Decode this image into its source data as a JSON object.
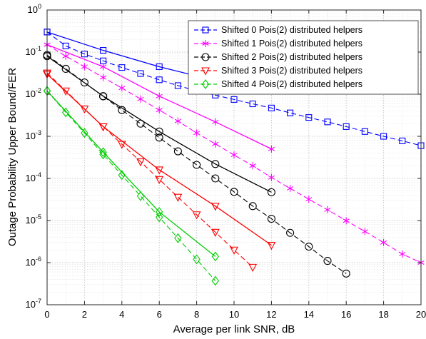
{
  "chart_data": {
    "type": "line",
    "title": "",
    "xlabel": "Average per link SNR, dB",
    "ylabel": "Outage Probability Upper Bound/FER",
    "xlim": [
      0,
      20
    ],
    "ylim_log10": [
      -7,
      0
    ],
    "y_scale": "log",
    "grid": "major and minor, dotted",
    "legend_position": "top-right",
    "x_ticks": [
      "0",
      "2",
      "4",
      "6",
      "8",
      "10",
      "12",
      "14",
      "16",
      "18",
      "20"
    ],
    "y_tick_exponents": [
      "0",
      "-1",
      "-2",
      "-3",
      "-4",
      "-5",
      "-6",
      "-7"
    ],
    "series": [
      {
        "name": "Shifted 0 Pois(2) distributed helpers",
        "color": "#0000ff",
        "marker": "square",
        "simulation": {
          "x": [
            0,
            1,
            2,
            3,
            4,
            5,
            6,
            7,
            8,
            9,
            10,
            11,
            12,
            13,
            14,
            15,
            16,
            17,
            18,
            19,
            20
          ],
          "y": [
            0.3,
            0.14,
            0.09,
            0.062,
            0.043,
            0.031,
            0.022,
            0.016,
            0.012,
            0.0095,
            0.0075,
            0.0059,
            0.0047,
            0.0036,
            0.0028,
            0.0022,
            0.0017,
            0.0013,
            0.001,
            0.00078,
            0.0006
          ]
        },
        "bound": {
          "x": [
            0,
            3,
            6,
            9,
            12
          ],
          "y": [
            0.3,
            0.11,
            0.045,
            0.021,
            0.012
          ]
        }
      },
      {
        "name": "Shifted 1 Pois(2)  distributed helpers",
        "color": "#ff00ff",
        "marker": "asterisk",
        "simulation": {
          "x": [
            0,
            1,
            2,
            3,
            4,
            5,
            6,
            7,
            8,
            9,
            10,
            11,
            12,
            13,
            14,
            15,
            16,
            17,
            18,
            19,
            20
          ],
          "y": [
            0.15,
            0.08,
            0.045,
            0.025,
            0.014,
            0.0077,
            0.0042,
            0.0023,
            0.0012,
            0.00066,
            0.00036,
            0.0002,
            0.000105,
            5.8e-05,
            3.2e-05,
            1.8e-05,
            9.9e-06,
            5.5e-06,
            3e-06,
            1.6e-06,
            1e-06
          ]
        },
        "bound": {
          "x": [
            0,
            3,
            6,
            9,
            12
          ],
          "y": [
            0.15,
            0.045,
            0.009,
            0.0022,
            0.0005
          ]
        }
      },
      {
        "name": "Shifted 2 Pois(2)  distributed helpers",
        "color": "#000000",
        "marker": "circle",
        "simulation": {
          "x": [
            0,
            1,
            2,
            3,
            4,
            5,
            6,
            7,
            8,
            9,
            10,
            11,
            12,
            13,
            14,
            15,
            16
          ],
          "y": [
            0.085,
            0.04,
            0.019,
            0.0089,
            0.0042,
            0.002,
            0.00093,
            0.00044,
            0.00021,
            0.0001,
            4.8e-05,
            2.2e-05,
            1.1e-05,
            5.1e-06,
            2.4e-06,
            1.1e-06,
            5.5e-07
          ]
        },
        "bound": {
          "x": [
            0,
            3,
            6,
            9,
            12
          ],
          "y": [
            0.08,
            0.009,
            0.0013,
            0.00022,
            4.7e-05
          ]
        }
      },
      {
        "name": "Shifted 3 Pois(2)  distributed helpers",
        "color": "#ff0000",
        "marker": "triangle-down",
        "simulation": {
          "x": [
            0,
            1,
            2,
            3,
            4,
            5,
            6,
            7,
            8,
            9,
            10,
            11
          ],
          "y": [
            0.032,
            0.012,
            0.0045,
            0.0017,
            0.00065,
            0.00025,
            9.5e-05,
            3.6e-05,
            1.38e-05,
            5.3e-06,
            2e-06,
            7.8e-07
          ]
        },
        "bound": {
          "x": [
            0,
            3,
            6,
            9,
            12
          ],
          "y": [
            0.03,
            0.0017,
            0.00016,
            2.2e-05,
            2.6e-06
          ]
        }
      },
      {
        "name": "Shifted 4 Pois(2)  distributed helpers",
        "color": "#00cc00",
        "marker": "diamond",
        "simulation": {
          "x": [
            0,
            1,
            2,
            3,
            4,
            5,
            6,
            7,
            8,
            9
          ],
          "y": [
            0.012,
            0.0037,
            0.0012,
            0.00037,
            0.00012,
            3.8e-05,
            1.2e-05,
            3.8e-06,
            1.2e-06,
            3.7e-07
          ]
        },
        "bound": {
          "x": [
            0,
            3,
            6,
            9
          ],
          "y": [
            0.012,
            0.00042,
            1.6e-05,
            1.4e-06
          ]
        }
      }
    ]
  }
}
